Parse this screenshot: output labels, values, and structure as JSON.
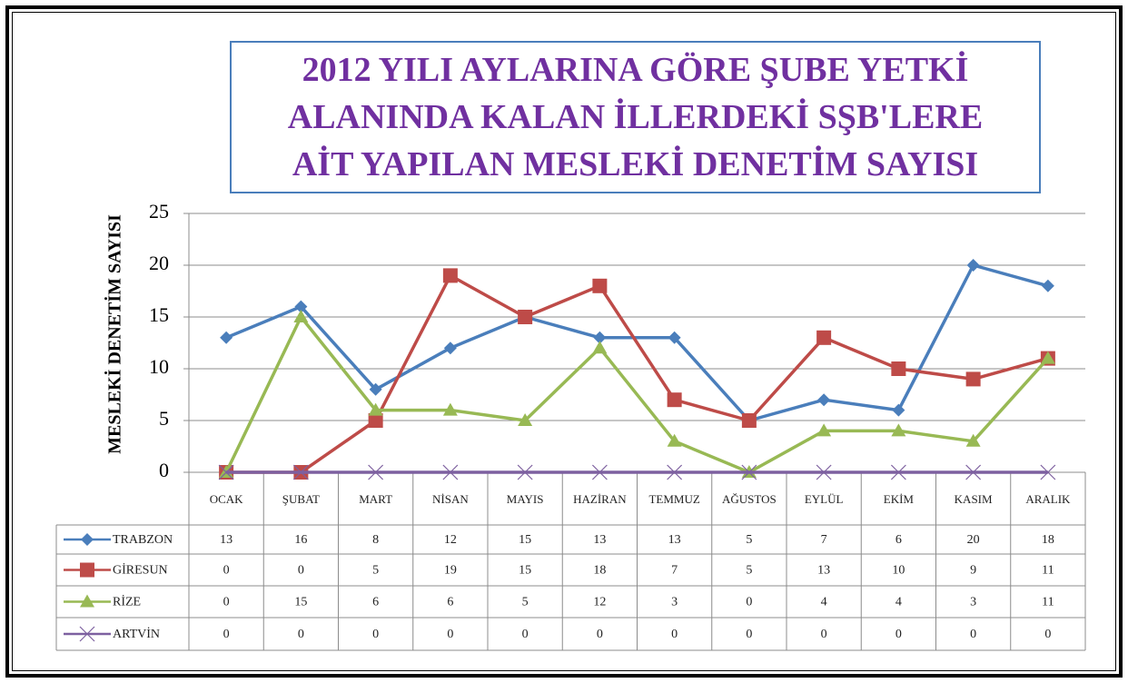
{
  "chart_data": {
    "type": "line",
    "title": "2012 YILI AYLARINA GÖRE ŞUBE YETKİ ALANINDA KALAN İLLERDEKİ SŞB'LERE AİT YAPILAN MESLEKİ DENETİM SAYISI",
    "y_label": "MESLEKİ DENETİM SAYISI",
    "categories": [
      "OCAK",
      "ŞUBAT",
      "MART",
      "NİSAN",
      "MAYIS",
      "HAZİRAN",
      "TEMMUZ",
      "AĞUSTOS",
      "EYLÜL",
      "EKİM",
      "KASIM",
      "ARALIK"
    ],
    "series": [
      {
        "name": "TRABZON",
        "color": "#4a7ebb",
        "marker": "diamond",
        "values": [
          13,
          16,
          8,
          12,
          15,
          13,
          13,
          5,
          7,
          6,
          20,
          18
        ]
      },
      {
        "name": "GİRESUN",
        "color": "#be4b48",
        "marker": "square",
        "values": [
          0,
          0,
          5,
          19,
          15,
          18,
          7,
          5,
          13,
          10,
          9,
          11
        ]
      },
      {
        "name": "RİZE",
        "color": "#98b954",
        "marker": "triangle",
        "values": [
          0,
          15,
          6,
          6,
          5,
          12,
          3,
          0,
          4,
          4,
          3,
          11
        ]
      },
      {
        "name": "ARTVİN",
        "color": "#7d60a0",
        "marker": "x",
        "values": [
          0,
          0,
          0,
          0,
          0,
          0,
          0,
          0,
          0,
          0,
          0,
          0
        ]
      }
    ],
    "ylim": [
      0,
      25
    ],
    "yticks": [
      0,
      5,
      10,
      15,
      20,
      25
    ],
    "grid": true,
    "data_table": true
  }
}
